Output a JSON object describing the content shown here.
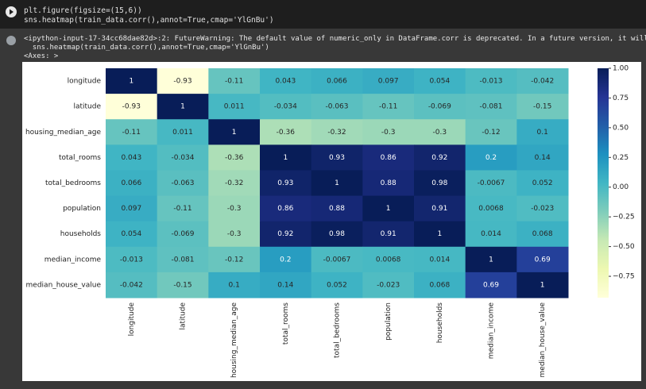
{
  "code": {
    "lines": [
      "plt.figure(figsize=(15,6))",
      "sns.heatmap(train_data.corr(),annot=True,cmap='YlGnBu')"
    ]
  },
  "output": {
    "lines": [
      "<ipython-input-17-34cc68dae82d>:2: FutureWarning: The default value of numeric_only in DataFrame.corr is deprecated. In a future version, it will default to False.",
      "  sns.heatmap(train_data.corr(),annot=True,cmap='YlGnBu')",
      "<Axes: >"
    ]
  },
  "chart_data": {
    "type": "heatmap",
    "cmap": "YlGnBu",
    "rows": [
      "longitude",
      "latitude",
      "housing_median_age",
      "total_rooms",
      "total_bedrooms",
      "population",
      "households",
      "median_income",
      "median_house_value"
    ],
    "columns": [
      "longitude",
      "latitude",
      "housing_median_age",
      "total_rooms",
      "total_bedrooms",
      "population",
      "households",
      "median_income",
      "median_house_value"
    ],
    "values": [
      [
        1,
        -0.93,
        -0.11,
        0.043,
        0.066,
        0.097,
        0.054,
        -0.013,
        -0.042
      ],
      [
        -0.93,
        1,
        0.011,
        -0.034,
        -0.063,
        -0.11,
        -0.069,
        -0.081,
        -0.15
      ],
      [
        -0.11,
        0.011,
        1,
        -0.36,
        -0.32,
        -0.3,
        -0.3,
        -0.12,
        0.1
      ],
      [
        0.043,
        -0.034,
        -0.36,
        1,
        0.93,
        0.86,
        0.92,
        0.2,
        0.14
      ],
      [
        0.066,
        -0.063,
        -0.32,
        0.93,
        1,
        0.88,
        0.98,
        -0.0067,
        0.052
      ],
      [
        0.097,
        -0.11,
        -0.3,
        0.86,
        0.88,
        1,
        0.91,
        0.0068,
        -0.023
      ],
      [
        0.054,
        -0.069,
        -0.3,
        0.92,
        0.98,
        0.91,
        1,
        0.014,
        0.068
      ],
      [
        -0.013,
        -0.081,
        -0.12,
        0.2,
        -0.0067,
        0.0068,
        0.014,
        1,
        0.69
      ],
      [
        -0.042,
        -0.15,
        0.1,
        0.14,
        0.052,
        -0.023,
        0.068,
        0.69,
        1
      ]
    ],
    "clim": [
      -0.93,
      1
    ],
    "cticks": [
      {
        "value": 1,
        "label": "1.00"
      },
      {
        "value": 0.75,
        "label": "0.75"
      },
      {
        "value": 0.5,
        "label": "0.50"
      },
      {
        "value": 0.25,
        "label": "0.25"
      },
      {
        "value": 0,
        "label": "0.00"
      },
      {
        "value": -0.25,
        "label": "−0.25"
      },
      {
        "value": -0.5,
        "label": "−0.50"
      },
      {
        "value": -0.75,
        "label": "−0.75"
      }
    ]
  }
}
